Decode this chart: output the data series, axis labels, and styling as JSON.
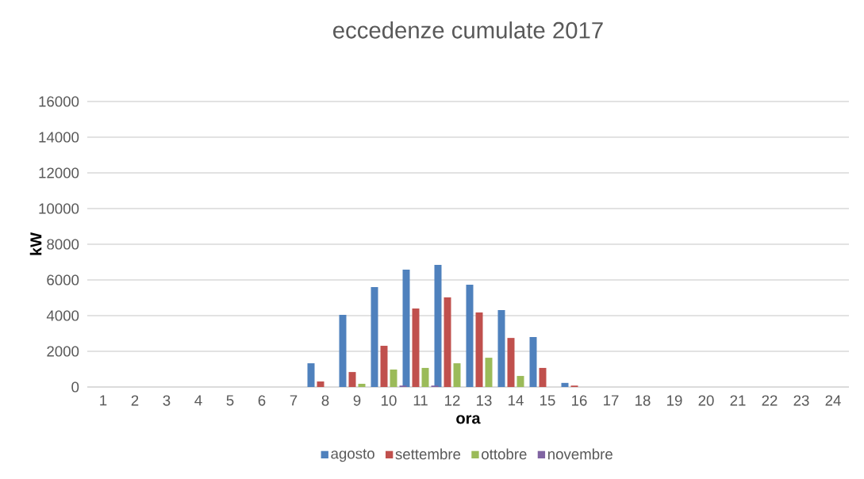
{
  "chart_data": {
    "type": "bar",
    "title": "eccedenze cumulate 2017",
    "xlabel": "ora",
    "ylabel": "kW",
    "categories": [
      "1",
      "2",
      "3",
      "4",
      "5",
      "6",
      "7",
      "8",
      "9",
      "10",
      "11",
      "12",
      "13",
      "14",
      "15",
      "16",
      "17",
      "18",
      "19",
      "20",
      "21",
      "22",
      "23",
      "24"
    ],
    "series": [
      {
        "name": "agosto",
        "color": "#4f81bd",
        "values": [
          0,
          0,
          0,
          0,
          0,
          0,
          0,
          1330,
          4040,
          5600,
          6580,
          6840,
          5730,
          4310,
          2800,
          230,
          0,
          0,
          0,
          0,
          0,
          0,
          0,
          0
        ]
      },
      {
        "name": "settembre",
        "color": "#c0504d",
        "values": [
          0,
          0,
          0,
          0,
          0,
          0,
          0,
          310,
          840,
          2310,
          4400,
          5020,
          4180,
          2750,
          1070,
          80,
          0,
          0,
          0,
          0,
          0,
          0,
          0,
          0
        ]
      },
      {
        "name": "ottobre",
        "color": "#9bbb59",
        "values": [
          0,
          0,
          0,
          0,
          0,
          0,
          0,
          0,
          180,
          980,
          1070,
          1330,
          1640,
          620,
          0,
          0,
          0,
          0,
          0,
          0,
          0,
          0,
          0,
          0
        ]
      },
      {
        "name": "novembre",
        "color": "#8064a2",
        "values": [
          0,
          0,
          0,
          0,
          0,
          0,
          0,
          0,
          0,
          80,
          80,
          0,
          0,
          0,
          0,
          0,
          0,
          0,
          0,
          0,
          0,
          0,
          0,
          0
        ]
      }
    ],
    "ylim": [
      0,
      16000
    ],
    "yticks": [
      0,
      2000,
      4000,
      6000,
      8000,
      10000,
      12000,
      14000,
      16000
    ],
    "grid": "y",
    "legend": "bottom"
  }
}
